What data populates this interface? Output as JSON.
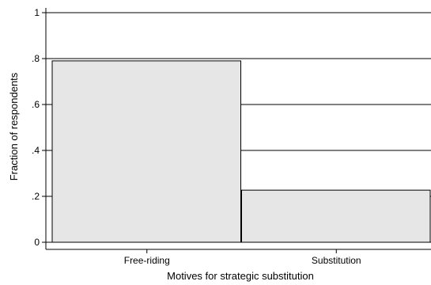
{
  "chart_data": {
    "type": "bar",
    "categories": [
      "Free-riding",
      "Substitution"
    ],
    "values": [
      0.79,
      0.227
    ],
    "xlabel": "Motives for strategic substitution",
    "ylabel": "Fraction of respondents",
    "ylim": [
      0,
      1
    ],
    "yticks": [
      0,
      0.2,
      0.4,
      0.6,
      0.8,
      1
    ],
    "ytick_labels": [
      "0",
      ".2",
      ".4",
      ".6",
      ".8",
      "1"
    ],
    "grid": true,
    "legend": "none",
    "bar_color": "#e6e6e6",
    "edge_color": "#000000"
  }
}
